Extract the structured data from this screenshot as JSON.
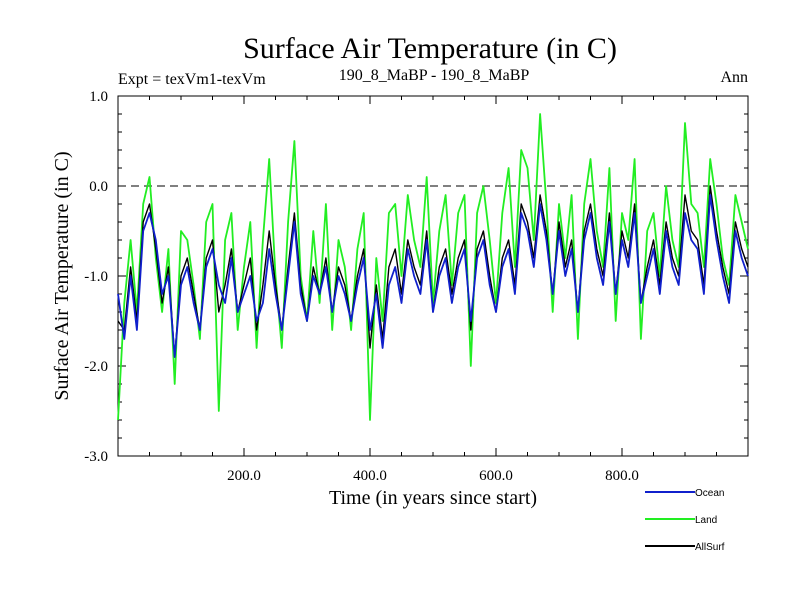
{
  "chart_data": {
    "type": "line",
    "title": "Surface Air Temperature (in C)",
    "experiment_label": "Expt = texVm1-texVm",
    "comparison_label": "190_8_MaBP - 190_8_MaBP",
    "period_label": "Ann",
    "xlabel": "Time (in years since start)",
    "ylabel": "Surface Air Temperature (in C)",
    "xlim": [
      0,
      1000
    ],
    "ylim": [
      -3.0,
      1.0
    ],
    "x_ticks": [
      200,
      400,
      600,
      800
    ],
    "x_tick_labels": [
      "200.0",
      "400.0",
      "600.0",
      "800.0"
    ],
    "y_ticks": [
      -3.0,
      -2.0,
      -1.0,
      0.0,
      1.0
    ],
    "y_tick_labels": [
      "-3.0",
      "-2.0",
      "-1.0",
      "0.0",
      "1.0"
    ],
    "reference_line": 0.0,
    "legend_position": "bottom-right",
    "series": [
      {
        "name": "Ocean",
        "color": "#1020cc",
        "x": [
          0,
          10,
          20,
          30,
          40,
          50,
          60,
          70,
          80,
          90,
          100,
          110,
          120,
          130,
          140,
          150,
          160,
          170,
          180,
          190,
          200,
          210,
          220,
          230,
          240,
          250,
          260,
          270,
          280,
          290,
          300,
          310,
          320,
          330,
          340,
          350,
          360,
          370,
          380,
          390,
          400,
          410,
          420,
          430,
          440,
          450,
          460,
          470,
          480,
          490,
          500,
          510,
          520,
          530,
          540,
          550,
          560,
          570,
          580,
          590,
          600,
          610,
          620,
          630,
          640,
          650,
          660,
          670,
          680,
          690,
          700,
          710,
          720,
          730,
          740,
          750,
          760,
          770,
          780,
          790,
          800,
          810,
          820,
          830,
          840,
          850,
          860,
          870,
          880,
          890,
          900,
          910,
          920,
          930,
          940,
          950,
          960,
          970,
          980,
          990,
          1000
        ],
        "values": [
          -1.2,
          -1.7,
          -1.0,
          -1.6,
          -0.5,
          -0.3,
          -0.6,
          -1.2,
          -1.0,
          -1.9,
          -1.1,
          -0.9,
          -1.3,
          -1.6,
          -0.9,
          -0.7,
          -1.1,
          -1.3,
          -0.8,
          -1.4,
          -1.2,
          -1.0,
          -1.5,
          -1.3,
          -0.7,
          -1.2,
          -1.6,
          -1.0,
          -0.4,
          -1.2,
          -1.5,
          -1.0,
          -1.2,
          -0.9,
          -1.4,
          -1.0,
          -1.2,
          -1.5,
          -1.1,
          -0.8,
          -1.6,
          -1.2,
          -1.8,
          -1.1,
          -0.9,
          -1.3,
          -0.7,
          -1.0,
          -1.2,
          -0.6,
          -1.4,
          -1.0,
          -0.8,
          -1.3,
          -0.9,
          -0.7,
          -1.5,
          -0.8,
          -0.6,
          -1.1,
          -1.4,
          -0.9,
          -0.7,
          -1.2,
          -0.3,
          -0.5,
          -0.9,
          -0.2,
          -0.6,
          -1.2,
          -0.5,
          -1.0,
          -0.7,
          -1.4,
          -0.6,
          -0.3,
          -0.8,
          -1.1,
          -0.4,
          -1.2,
          -0.6,
          -0.9,
          -0.3,
          -1.3,
          -1.0,
          -0.7,
          -1.2,
          -0.5,
          -0.9,
          -1.1,
          -0.3,
          -0.6,
          -0.7,
          -1.2,
          -0.1,
          -0.6,
          -1.0,
          -1.3,
          -0.5,
          -0.8,
          -1.0
        ]
      },
      {
        "name": "Land",
        "color": "#22ee22",
        "x": [
          0,
          10,
          20,
          30,
          40,
          50,
          60,
          70,
          80,
          90,
          100,
          110,
          120,
          130,
          140,
          150,
          160,
          170,
          180,
          190,
          200,
          210,
          220,
          230,
          240,
          250,
          260,
          270,
          280,
          290,
          300,
          310,
          320,
          330,
          340,
          350,
          360,
          370,
          380,
          390,
          400,
          410,
          420,
          430,
          440,
          450,
          460,
          470,
          480,
          490,
          500,
          510,
          520,
          530,
          540,
          550,
          560,
          570,
          580,
          590,
          600,
          610,
          620,
          630,
          640,
          650,
          660,
          670,
          680,
          690,
          700,
          710,
          720,
          730,
          740,
          750,
          760,
          770,
          780,
          790,
          800,
          810,
          820,
          830,
          840,
          850,
          860,
          870,
          880,
          890,
          900,
          910,
          920,
          930,
          940,
          950,
          960,
          970,
          980,
          990,
          1000
        ],
        "values": [
          -2.6,
          -1.3,
          -0.6,
          -1.4,
          -0.2,
          0.1,
          -0.8,
          -1.4,
          -0.7,
          -2.2,
          -0.5,
          -0.6,
          -1.1,
          -1.7,
          -0.4,
          -0.2,
          -2.5,
          -0.6,
          -0.3,
          -1.6,
          -0.9,
          -0.4,
          -1.8,
          -0.6,
          0.3,
          -1.0,
          -1.8,
          -0.4,
          0.5,
          -1.0,
          -1.5,
          -0.5,
          -1.3,
          -0.2,
          -1.6,
          -0.6,
          -0.9,
          -1.6,
          -0.7,
          -0.3,
          -2.6,
          -0.8,
          -1.5,
          -0.3,
          -0.2,
          -1.0,
          -0.1,
          -0.6,
          -0.9,
          0.1,
          -1.3,
          -0.5,
          -0.1,
          -1.1,
          -0.3,
          -0.1,
          -2.0,
          -0.3,
          0.0,
          -0.6,
          -1.3,
          -0.3,
          0.2,
          -0.9,
          0.4,
          0.2,
          -0.6,
          0.8,
          -0.2,
          -1.4,
          -0.2,
          -0.8,
          -0.1,
          -1.7,
          -0.2,
          0.3,
          -0.5,
          -0.9,
          0.2,
          -1.5,
          -0.3,
          -0.6,
          0.3,
          -1.7,
          -0.5,
          -0.3,
          -1.0,
          0.0,
          -0.6,
          -0.9,
          0.7,
          -0.2,
          -0.3,
          -0.9,
          0.3,
          -0.2,
          -0.8,
          -1.1,
          -0.1,
          -0.4,
          -0.7
        ]
      },
      {
        "name": "AllSurf",
        "color": "#000000",
        "x": [
          0,
          10,
          20,
          30,
          40,
          50,
          60,
          70,
          80,
          90,
          100,
          110,
          120,
          130,
          140,
          150,
          160,
          170,
          180,
          190,
          200,
          210,
          220,
          230,
          240,
          250,
          260,
          270,
          280,
          290,
          300,
          310,
          320,
          330,
          340,
          350,
          360,
          370,
          380,
          390,
          400,
          410,
          420,
          430,
          440,
          450,
          460,
          470,
          480,
          490,
          500,
          510,
          520,
          530,
          540,
          550,
          560,
          570,
          580,
          590,
          600,
          610,
          620,
          630,
          640,
          650,
          660,
          670,
          680,
          690,
          700,
          710,
          720,
          730,
          740,
          750,
          760,
          770,
          780,
          790,
          800,
          810,
          820,
          830,
          840,
          850,
          860,
          870,
          880,
          890,
          900,
          910,
          920,
          930,
          940,
          950,
          960,
          970,
          980,
          990,
          1000
        ],
        "values": [
          -1.5,
          -1.6,
          -0.9,
          -1.5,
          -0.4,
          -0.2,
          -0.7,
          -1.3,
          -0.9,
          -1.9,
          -1.0,
          -0.8,
          -1.2,
          -1.6,
          -0.8,
          -0.6,
          -1.4,
          -1.1,
          -0.7,
          -1.4,
          -1.1,
          -0.8,
          -1.6,
          -1.1,
          -0.5,
          -1.1,
          -1.6,
          -0.9,
          -0.3,
          -1.1,
          -1.5,
          -0.9,
          -1.2,
          -0.8,
          -1.4,
          -0.9,
          -1.1,
          -1.5,
          -1.0,
          -0.7,
          -1.8,
          -1.1,
          -1.7,
          -0.9,
          -0.7,
          -1.2,
          -0.6,
          -0.9,
          -1.1,
          -0.5,
          -1.4,
          -0.9,
          -0.7,
          -1.2,
          -0.8,
          -0.6,
          -1.6,
          -0.7,
          -0.5,
          -1.0,
          -1.4,
          -0.8,
          -0.6,
          -1.1,
          -0.2,
          -0.4,
          -0.8,
          -0.1,
          -0.5,
          -1.2,
          -0.4,
          -0.9,
          -0.6,
          -1.4,
          -0.5,
          -0.2,
          -0.7,
          -1.0,
          -0.3,
          -1.2,
          -0.5,
          -0.8,
          -0.2,
          -1.3,
          -0.9,
          -0.6,
          -1.1,
          -0.4,
          -0.8,
          -1.0,
          -0.1,
          -0.5,
          -0.6,
          -1.1,
          0.0,
          -0.5,
          -0.9,
          -1.2,
          -0.4,
          -0.7,
          -0.9
        ]
      }
    ]
  }
}
